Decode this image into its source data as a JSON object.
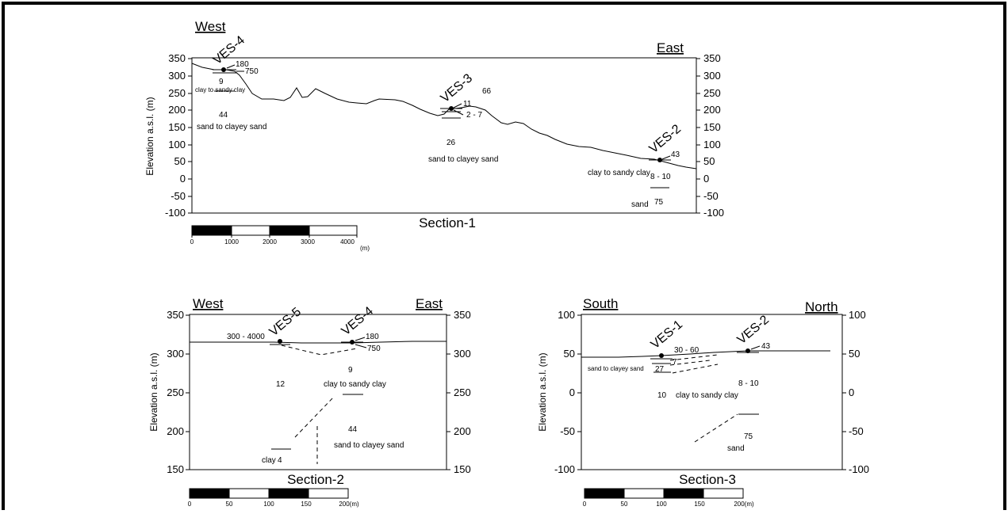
{
  "section1": {
    "title": "Section-1",
    "west": "West",
    "east": "East",
    "ylabel": "Elevation a.s.l. (m)",
    "yticks": [
      "350",
      "300",
      "250",
      "200",
      "150",
      "100",
      "50",
      "0",
      "-50",
      "-100"
    ],
    "ves4": "VES-4",
    "ves3": "VES-3",
    "ves2": "VES-2",
    "labels": {
      "v4_r1": "180",
      "v4_r2": "750",
      "v4_r3": "9",
      "v4_l3": "clay to sandy clay",
      "v4_r4": "44",
      "v4_l4": "sand to clayey sand",
      "v3_r0": "66",
      "v3_r1": "11",
      "v3_r2": "2 - 7",
      "v3_r3": "26",
      "v3_l3": "sand to clayey sand",
      "v2_r1": "43",
      "v2_l2": "clay to sandy clay",
      "v2_r2": "8 - 10",
      "v2_l3": "sand",
      "v2_r3": "75"
    },
    "scale": {
      "ticks": [
        "0",
        "1000",
        "2000",
        "3000",
        "4000"
      ],
      "unit": "(m)"
    }
  },
  "section2": {
    "title": "Section-2",
    "west": "West",
    "east": "East",
    "ylabel": "Elevation a.s.l. (m)",
    "yticks": [
      "350",
      "300",
      "250",
      "200",
      "150"
    ],
    "ves5": "VES-5",
    "ves4": "VES-4",
    "labels": {
      "v5_r1": "300 - 4000",
      "v4_r1": "180",
      "v4_r2": "750",
      "v4_r3": "9",
      "v4_l3": "clay to sandy clay",
      "v5_r3": "12",
      "v4_r4": "44",
      "v4_l4": "sand to clayey sand",
      "v5_l4": "clay",
      "v5_r4": "4"
    },
    "scale": {
      "ticks": [
        "0",
        "50",
        "100",
        "150",
        "200(m)"
      ]
    }
  },
  "section3": {
    "title": "Section-3",
    "south": "South",
    "north": "North",
    "ylabel": "Elevation a.s.l. (m)",
    "yticks": [
      "100",
      "50",
      "0",
      "-50",
      "-100"
    ],
    "ves1": "VES-1",
    "ves2": "VES-2",
    "labels": {
      "v1_r1": "30 - 60",
      "v1_r2": "7",
      "v1_l3": "sand to clayey sand",
      "v1_r3": "27",
      "v2_r1": "43",
      "v2_r2": "8 - 10",
      "v1_r4": "10",
      "v_l4": "clay to sandy clay",
      "v2_r3": "75",
      "v2_l3": "sand"
    },
    "scale": {
      "ticks": [
        "0",
        "50",
        "100",
        "150",
        "200(m)"
      ]
    }
  }
}
